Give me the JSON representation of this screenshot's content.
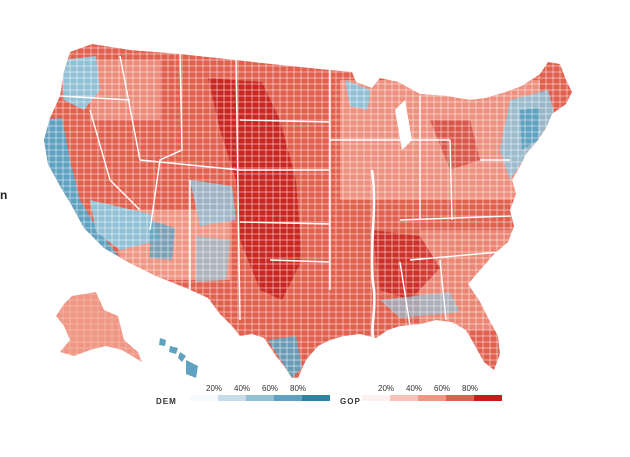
{
  "edge_text": "n",
  "legend": {
    "dem": {
      "label": "DEM",
      "ticks": [
        "20%",
        "40%",
        "60%",
        "80%"
      ],
      "colors": [
        "#f5fafc",
        "#c6dde9",
        "#92c1d6",
        "#5ea1c0",
        "#2f82a6"
      ]
    },
    "gop": {
      "label": "GOP",
      "ticks": [
        "20%",
        "40%",
        "60%",
        "80%"
      ],
      "colors": [
        "#fdf1ef",
        "#f6c3b6",
        "#ef9684",
        "#e1614f",
        "#c61d1a"
      ]
    }
  },
  "map": {
    "type": "county choropleth",
    "base_color": "#e1614f",
    "border_color": "#ffffff",
    "regions": [
      "contiguous-us",
      "alaska",
      "hawaii"
    ]
  }
}
